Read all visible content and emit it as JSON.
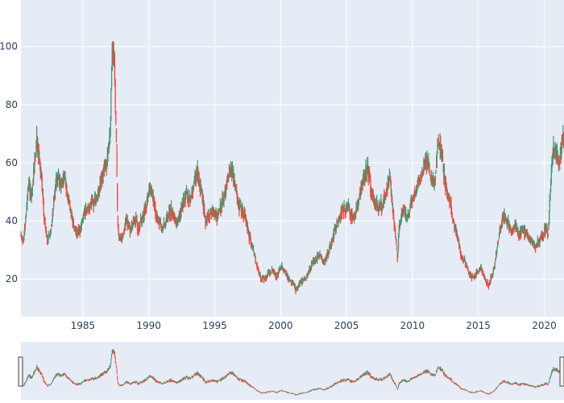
{
  "chart_data": {
    "type": "candlestick",
    "title": "",
    "xlabel": "",
    "ylabel": "",
    "x_range": [
      1980.3,
      2021.5
    ],
    "y_range": [
      7,
      116
    ],
    "x_ticks": [
      1985,
      1990,
      1995,
      2000,
      2005,
      2010,
      2015,
      2020
    ],
    "y_ticks": [
      20,
      40,
      60,
      80,
      100
    ],
    "grid": true,
    "rangeslider": true,
    "colors": {
      "increasing": "#3D9970",
      "decreasing": "#FF4136",
      "plot_bg": "#E5ECF6",
      "grid": "#ffffff",
      "tick_text": "#2a3f5f"
    },
    "series_anchors": [
      [
        1980.3,
        35
      ],
      [
        1980.5,
        33
      ],
      [
        1980.7,
        43
      ],
      [
        1980.9,
        53
      ],
      [
        1981.1,
        47
      ],
      [
        1981.3,
        58
      ],
      [
        1981.5,
        68
      ],
      [
        1981.7,
        62
      ],
      [
        1981.9,
        52
      ],
      [
        1982.1,
        40
      ],
      [
        1982.3,
        33
      ],
      [
        1982.5,
        35
      ],
      [
        1982.7,
        42
      ],
      [
        1982.9,
        52
      ],
      [
        1983.1,
        56
      ],
      [
        1983.3,
        52
      ],
      [
        1983.6,
        55
      ],
      [
        1983.9,
        48
      ],
      [
        1984.2,
        40
      ],
      [
        1984.5,
        36
      ],
      [
        1984.8,
        37
      ],
      [
        1985.1,
        42
      ],
      [
        1985.4,
        44
      ],
      [
        1985.7,
        47
      ],
      [
        1986.0,
        46
      ],
      [
        1986.3,
        52
      ],
      [
        1986.6,
        57
      ],
      [
        1986.9,
        62
      ],
      [
        1987.1,
        75
      ],
      [
        1987.25,
        100
      ],
      [
        1987.4,
        94
      ],
      [
        1987.55,
        65
      ],
      [
        1987.65,
        38
      ],
      [
        1987.8,
        33
      ],
      [
        1988.0,
        35
      ],
      [
        1988.3,
        40
      ],
      [
        1988.6,
        37
      ],
      [
        1988.9,
        41
      ],
      [
        1989.2,
        38
      ],
      [
        1989.5,
        40
      ],
      [
        1989.8,
        46
      ],
      [
        1990.1,
        52
      ],
      [
        1990.4,
        46
      ],
      [
        1990.7,
        40
      ],
      [
        1991.0,
        37
      ],
      [
        1991.3,
        40
      ],
      [
        1991.6,
        44
      ],
      [
        1991.9,
        42
      ],
      [
        1992.2,
        39
      ],
      [
        1992.5,
        45
      ],
      [
        1992.8,
        49
      ],
      [
        1993.1,
        47
      ],
      [
        1993.4,
        52
      ],
      [
        1993.7,
        56
      ],
      [
        1994.0,
        50
      ],
      [
        1994.3,
        40
      ],
      [
        1994.6,
        42
      ],
      [
        1994.9,
        44
      ],
      [
        1995.2,
        41
      ],
      [
        1995.5,
        45
      ],
      [
        1995.8,
        50
      ],
      [
        1996.1,
        58
      ],
      [
        1996.4,
        56
      ],
      [
        1996.7,
        47
      ],
      [
        1997.0,
        44
      ],
      [
        1997.3,
        42
      ],
      [
        1997.6,
        35
      ],
      [
        1997.9,
        30
      ],
      [
        1998.2,
        25
      ],
      [
        1998.5,
        20
      ],
      [
        1998.8,
        20
      ],
      [
        1999.1,
        22
      ],
      [
        1999.4,
        23
      ],
      [
        1999.7,
        21
      ],
      [
        2000.0,
        24
      ],
      [
        2000.3,
        23
      ],
      [
        2000.6,
        20
      ],
      [
        2000.9,
        19
      ],
      [
        2001.2,
        16
      ],
      [
        2001.5,
        19
      ],
      [
        2001.8,
        20
      ],
      [
        2002.1,
        22
      ],
      [
        2002.4,
        25
      ],
      [
        2002.7,
        27
      ],
      [
        2003.0,
        28
      ],
      [
        2003.3,
        25
      ],
      [
        2003.6,
        29
      ],
      [
        2003.9,
        33
      ],
      [
        2004.2,
        38
      ],
      [
        2004.5,
        42
      ],
      [
        2004.8,
        44
      ],
      [
        2005.1,
        45
      ],
      [
        2005.4,
        41
      ],
      [
        2005.7,
        43
      ],
      [
        2006.0,
        50
      ],
      [
        2006.3,
        55
      ],
      [
        2006.6,
        58
      ],
      [
        2006.9,
        50
      ],
      [
        2007.2,
        46
      ],
      [
        2007.5,
        44
      ],
      [
        2007.8,
        47
      ],
      [
        2008.1,
        52
      ],
      [
        2008.3,
        55
      ],
      [
        2008.5,
        44
      ],
      [
        2008.7,
        36
      ],
      [
        2008.85,
        27
      ],
      [
        2009.0,
        38
      ],
      [
        2009.3,
        45
      ],
      [
        2009.6,
        40
      ],
      [
        2009.9,
        46
      ],
      [
        2010.2,
        50
      ],
      [
        2010.5,
        54
      ],
      [
        2010.8,
        58
      ],
      [
        2011.1,
        62
      ],
      [
        2011.4,
        55
      ],
      [
        2011.7,
        53
      ],
      [
        2011.9,
        66
      ],
      [
        2012.2,
        64
      ],
      [
        2012.5,
        52
      ],
      [
        2012.8,
        48
      ],
      [
        2013.1,
        40
      ],
      [
        2013.4,
        35
      ],
      [
        2013.7,
        28
      ],
      [
        2014.0,
        26
      ],
      [
        2014.3,
        22
      ],
      [
        2014.6,
        20
      ],
      [
        2014.9,
        22
      ],
      [
        2015.2,
        24
      ],
      [
        2015.5,
        20
      ],
      [
        2015.8,
        18
      ],
      [
        2016.1,
        22
      ],
      [
        2016.35,
        28
      ],
      [
        2016.6,
        36
      ],
      [
        2016.9,
        42
      ],
      [
        2017.2,
        40
      ],
      [
        2017.5,
        36
      ],
      [
        2017.8,
        38
      ],
      [
        2018.1,
        35
      ],
      [
        2018.4,
        37
      ],
      [
        2018.7,
        35
      ],
      [
        2019.0,
        33
      ],
      [
        2019.3,
        31
      ],
      [
        2019.6,
        33
      ],
      [
        2019.9,
        35
      ],
      [
        2020.1,
        38
      ],
      [
        2020.3,
        35
      ],
      [
        2020.5,
        55
      ],
      [
        2020.7,
        65
      ],
      [
        2020.9,
        64
      ],
      [
        2021.1,
        58
      ],
      [
        2021.3,
        66
      ],
      [
        2021.5,
        70
      ]
    ]
  }
}
